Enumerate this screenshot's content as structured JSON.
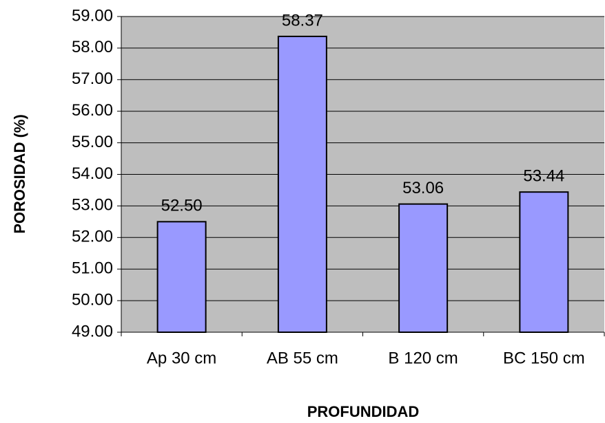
{
  "chart_data": {
    "type": "bar",
    "x_label": "PROFUNDIDAD",
    "y_label": "POROSIDAD (%)",
    "categories": [
      "Ap 30 cm",
      "AB 55 cm",
      "B 120 cm",
      "BC 150 cm"
    ],
    "values": [
      52.5,
      58.37,
      53.06,
      53.44
    ],
    "value_labels": [
      "52.50",
      "58.37",
      "53.06",
      "53.44"
    ],
    "color": "#9999ff",
    "ylim": [
      49,
      59
    ],
    "yticks": [
      {
        "value": 49,
        "label": "49.00"
      },
      {
        "value": 50,
        "label": "50.00"
      },
      {
        "value": 51,
        "label": "51.00"
      },
      {
        "value": 52,
        "label": "52.00"
      },
      {
        "value": 53,
        "label": "53.00"
      },
      {
        "value": 54,
        "label": "54.00"
      },
      {
        "value": 55,
        "label": "55.00"
      },
      {
        "value": 56,
        "label": "56.00"
      },
      {
        "value": 57,
        "label": "57.00"
      },
      {
        "value": 58,
        "label": "58.00"
      },
      {
        "value": 59,
        "label": "59.00"
      }
    ],
    "grid": true
  }
}
